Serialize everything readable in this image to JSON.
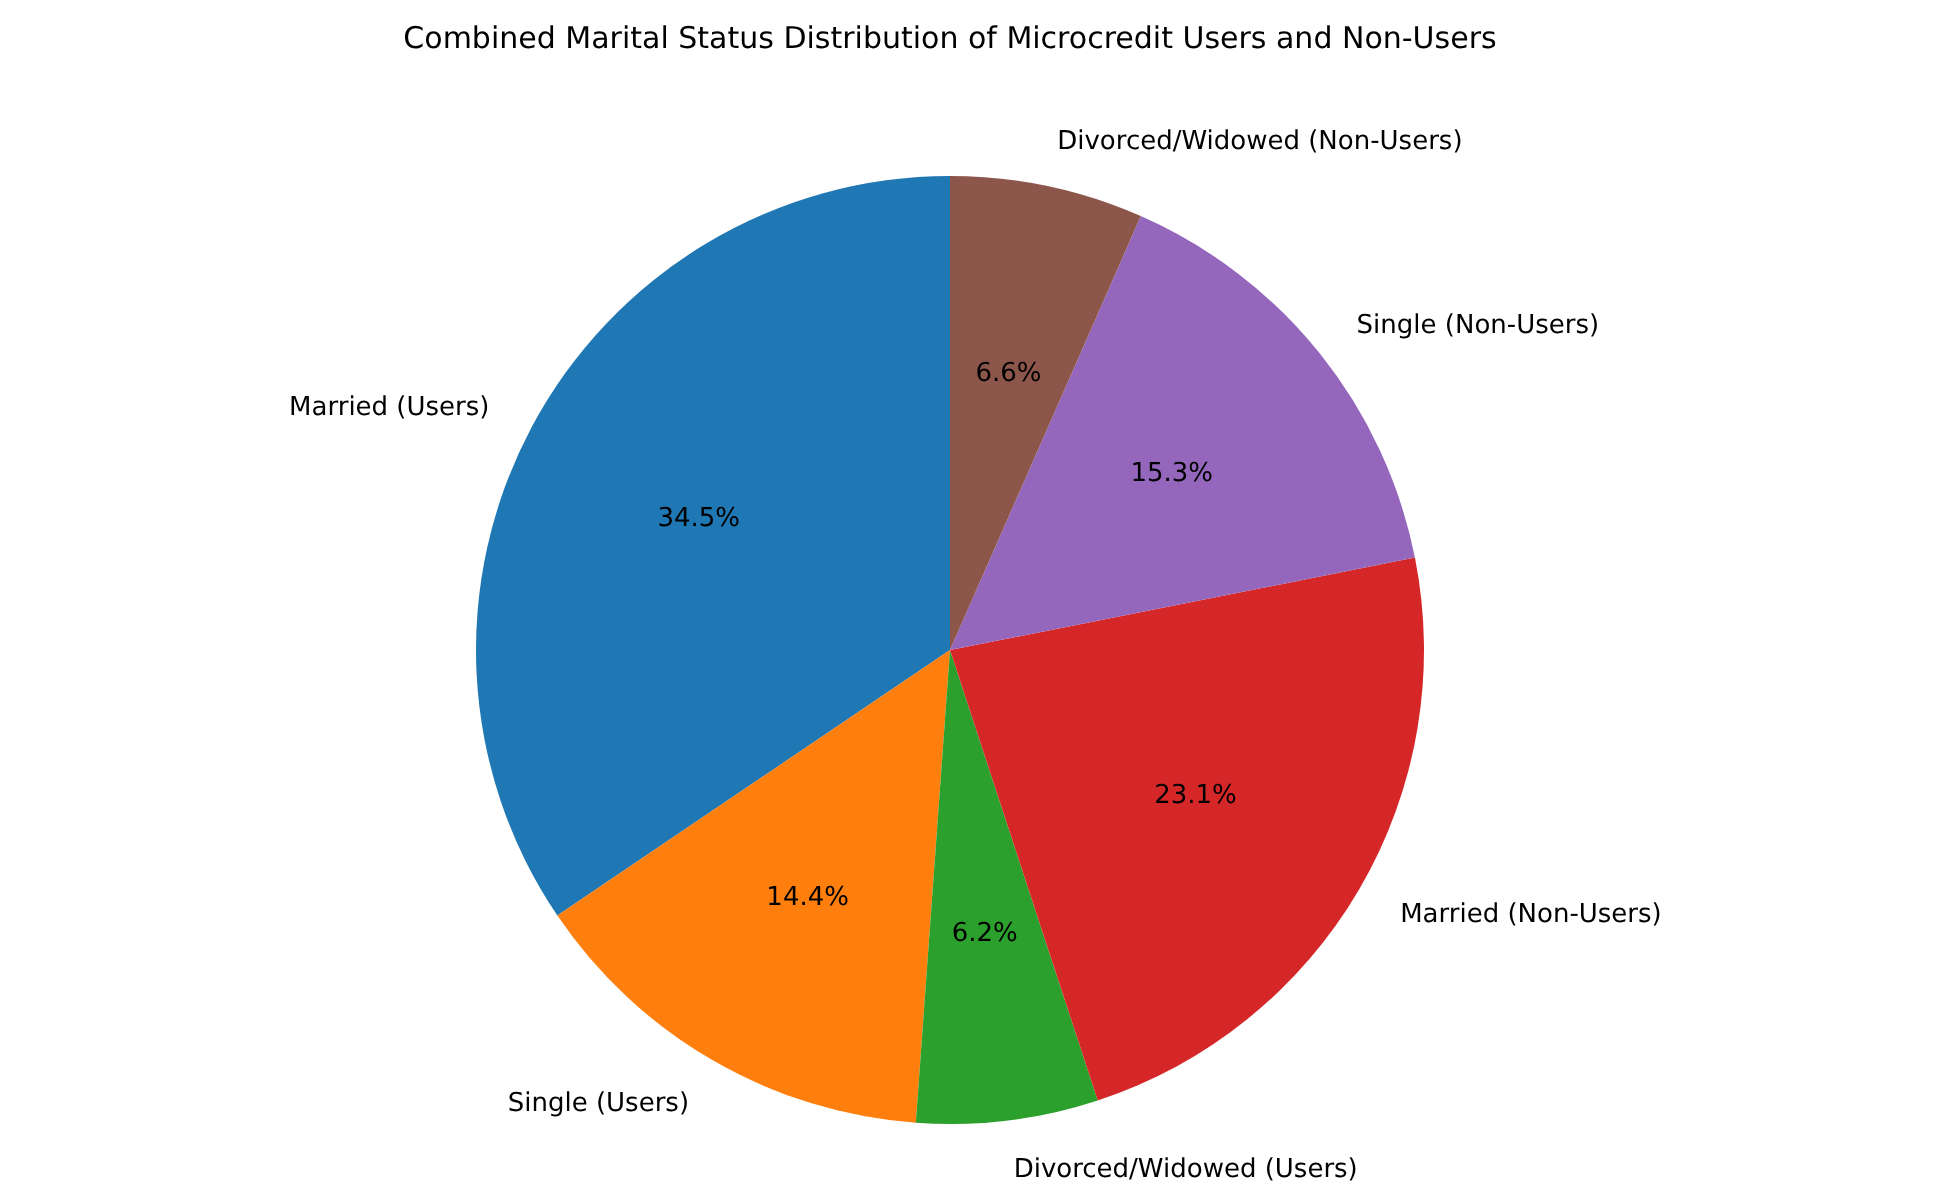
{
  "chart_data": {
    "type": "pie",
    "title": "Combined Marital Status Distribution of Microcredit Users and Non-Users",
    "categories": [
      "Married (Users)",
      "Single (Users)",
      "Divorced/Widowed (Users)",
      "Married (Non-Users)",
      "Single (Non-Users)",
      "Divorced/Widowed (Non-Users)"
    ],
    "values": [
      34.5,
      14.4,
      6.2,
      23.1,
      15.3,
      6.6
    ],
    "colors": [
      "#1f77b4",
      "#ff7f0e",
      "#2ca02c",
      "#d62728",
      "#9467bd",
      "#8c564b"
    ],
    "value_labels": [
      "34.5%",
      "14.4%",
      "6.2%",
      "23.1%",
      "15.3%",
      "6.6%"
    ],
    "legend": false
  }
}
